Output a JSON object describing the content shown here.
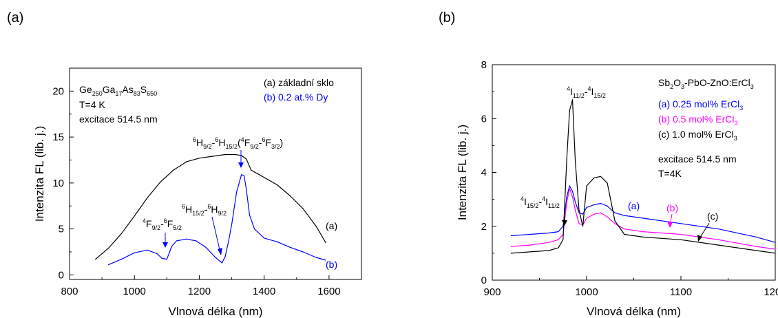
{
  "chart_data": [
    {
      "panel": "(a)",
      "type": "line",
      "xlabel": "Vlnová délka (nm)",
      "ylabel": "Intenzita FL (lib. j.)",
      "xlim": [
        800,
        1700
      ],
      "ylim": [
        -0.5,
        22.5
      ],
      "xticks": [
        800,
        1000,
        1200,
        1400,
        1600
      ],
      "yticks": [
        0,
        5,
        10,
        15,
        20
      ],
      "grid": false,
      "info": {
        "composition": {
          "base": "Ge",
          "s1": "250",
          "e2": "Ga",
          "s2": "17",
          "e3": "As",
          "s3": "83",
          "e4": "S",
          "s4": "650"
        },
        "temperature": "T=4 K",
        "excitation": "excitace 514.5 nm"
      },
      "legend": [
        {
          "label": "(a) základní sklo",
          "color": "#000000"
        },
        {
          "label": "(b)  0.2 at.% Dy",
          "color": "#0000ff"
        }
      ],
      "curve_labels": [
        {
          "text": "(a)",
          "color": "#000000"
        },
        {
          "text": "(b)",
          "color": "#0000ff"
        }
      ],
      "annotations": [
        {
          "parts": [
            [
              "4",
              "sup"
            ],
            [
              "F",
              ""
            ],
            [
              "9/2",
              "sub"
            ],
            [
              "-",
              ""
            ],
            [
              "6",
              "sup"
            ],
            [
              "F",
              ""
            ],
            [
              "5/2",
              "sub"
            ]
          ]
        },
        {
          "parts": [
            [
              "6",
              "sup"
            ],
            [
              "H",
              ""
            ],
            [
              "15/2",
              "sub"
            ],
            [
              "-",
              ""
            ],
            [
              "6",
              "sup"
            ],
            [
              "H",
              ""
            ],
            [
              "9/2",
              "sub"
            ]
          ]
        },
        {
          "parts": [
            [
              "6",
              "sup"
            ],
            [
              "H",
              ""
            ],
            [
              "9/2",
              "sub"
            ],
            [
              "-",
              ""
            ],
            [
              "6",
              "sup"
            ],
            [
              "H",
              ""
            ],
            [
              "15/2",
              "sub"
            ],
            [
              "(",
              ""
            ],
            [
              "4",
              "sup"
            ],
            [
              "F",
              ""
            ],
            [
              "9/2",
              "sub"
            ],
            [
              "-",
              ""
            ],
            [
              "6",
              "sup"
            ],
            [
              "F",
              ""
            ],
            [
              "3/2",
              "sub"
            ],
            [
              ")",
              ""
            ]
          ]
        }
      ],
      "series": [
        {
          "name": "(a) základní sklo",
          "color": "#000000",
          "x": [
            880,
            920,
            960,
            1000,
            1040,
            1080,
            1120,
            1160,
            1200,
            1240,
            1280,
            1310,
            1330,
            1345,
            1360,
            1400,
            1440,
            1480,
            1520,
            1560,
            1590
          ],
          "y": [
            1.7,
            2.9,
            4.5,
            6.4,
            8.4,
            10.1,
            11.4,
            12.3,
            12.7,
            12.9,
            13.1,
            13.1,
            13.0,
            12.6,
            11.4,
            10.6,
            9.8,
            8.6,
            7.2,
            5.3,
            3.5
          ]
        },
        {
          "name": "(b)  0.2 at.% Dy",
          "color": "#0000ff",
          "x": [
            920,
            960,
            1000,
            1040,
            1070,
            1085,
            1100,
            1115,
            1130,
            1160,
            1190,
            1220,
            1250,
            1270,
            1280,
            1290,
            1300,
            1315,
            1330,
            1338,
            1345,
            1355,
            1370,
            1400,
            1440,
            1480,
            1520,
            1560,
            1590
          ],
          "y": [
            1.1,
            1.7,
            2.4,
            2.7,
            2.3,
            1.8,
            1.7,
            3.1,
            3.7,
            3.9,
            3.7,
            3.0,
            1.9,
            1.3,
            2.0,
            3.6,
            5.5,
            9.0,
            10.9,
            10.8,
            9.3,
            6.5,
            5.0,
            4.0,
            3.6,
            3.0,
            2.5,
            1.9,
            1.6
          ]
        }
      ]
    },
    {
      "panel": "(b)",
      "type": "line",
      "xlabel": "Vlnová délka (nm)",
      "ylabel": "Intenzita FL (lib. j.)",
      "xlim": [
        900,
        1200
      ],
      "ylim": [
        0,
        8
      ],
      "xticks": [
        900,
        1000,
        1100,
        1200
      ],
      "yticks": [
        0,
        2,
        4,
        6,
        8
      ],
      "grid": false,
      "title_parts": [
        [
          "Sb",
          ""
        ],
        [
          "2",
          "sub"
        ],
        [
          "O",
          ""
        ],
        [
          "3",
          "sub"
        ],
        [
          "-PbO-ZnO:ErCl",
          ""
        ],
        [
          "3",
          "sub"
        ]
      ],
      "legend": [
        {
          "parts": [
            [
              "(a) 0.25 mol% ErCl",
              ""
            ],
            [
              "3",
              "sub"
            ]
          ],
          "color": "#0000ff"
        },
        {
          "parts": [
            [
              "(b) 0.5 mol% ErCl",
              ""
            ],
            [
              "3",
              "sub"
            ]
          ],
          "color": "#ff00ff"
        },
        {
          "parts": [
            [
              "(c) 1.0 mol% ErCl",
              ""
            ],
            [
              "3",
              "sub"
            ]
          ],
          "color": "#000000"
        }
      ],
      "info": {
        "excitation": "excitace 514.5 nm",
        "temperature": "T=4K"
      },
      "curve_labels": [
        {
          "text": "(a)",
          "color": "#0000ff"
        },
        {
          "text": "(b)",
          "color": "#ff00ff"
        },
        {
          "text": "(c)",
          "color": "#000000"
        }
      ],
      "annotations": [
        {
          "parts": [
            [
              "4",
              "sup"
            ],
            [
              "I",
              ""
            ],
            [
              "11/2",
              "sub"
            ],
            [
              "-",
              ""
            ],
            [
              "4",
              "sup"
            ],
            [
              "I",
              ""
            ],
            [
              "15/2",
              "sub"
            ]
          ]
        },
        {
          "parts": [
            [
              "4",
              "sup"
            ],
            [
              "I",
              ""
            ],
            [
              "15/2",
              "sub"
            ],
            [
              "-",
              ""
            ],
            [
              "4",
              "sup"
            ],
            [
              "I",
              ""
            ],
            [
              "11/2",
              "sub"
            ]
          ]
        }
      ],
      "series": [
        {
          "name": "(a) 0.25 mol% ErCl3",
          "color": "#0000ff",
          "x": [
            920,
            940,
            960,
            970,
            975,
            979,
            982,
            985,
            988,
            992,
            996,
            1000,
            1008,
            1015,
            1022,
            1030,
            1040,
            1060,
            1100,
            1140,
            1180,
            1200
          ],
          "y": [
            1.65,
            1.7,
            1.75,
            1.8,
            2.0,
            3.1,
            3.5,
            3.3,
            2.9,
            2.5,
            2.45,
            2.7,
            2.8,
            2.85,
            2.75,
            2.5,
            2.4,
            2.3,
            2.1,
            1.9,
            1.6,
            1.4
          ]
        },
        {
          "name": "(b) 0.5 mol% ErCl3",
          "color": "#ff00ff",
          "x": [
            920,
            940,
            960,
            970,
            975,
            979,
            982,
            985,
            988,
            992,
            996,
            1000,
            1008,
            1015,
            1022,
            1030,
            1040,
            1060,
            1100,
            1140,
            1180,
            1200
          ],
          "y": [
            1.25,
            1.3,
            1.4,
            1.5,
            1.7,
            2.9,
            3.4,
            3.1,
            2.6,
            2.1,
            2.05,
            2.3,
            2.45,
            2.5,
            2.35,
            2.1,
            1.9,
            1.8,
            1.7,
            1.5,
            1.25,
            1.15
          ]
        },
        {
          "name": "(c) 1.0 mol% ErCl3",
          "color": "#000000",
          "x": [
            920,
            940,
            960,
            970,
            975,
            979,
            982,
            985,
            988,
            992,
            996,
            1000,
            1008,
            1015,
            1022,
            1030,
            1040,
            1060,
            1100,
            1140,
            1180,
            1200
          ],
          "y": [
            1.0,
            1.05,
            1.1,
            1.2,
            1.5,
            4.5,
            6.3,
            6.7,
            4.4,
            2.6,
            2.0,
            3.5,
            3.8,
            3.85,
            3.6,
            2.2,
            1.7,
            1.6,
            1.5,
            1.3,
            1.1,
            1.0
          ]
        }
      ]
    }
  ]
}
